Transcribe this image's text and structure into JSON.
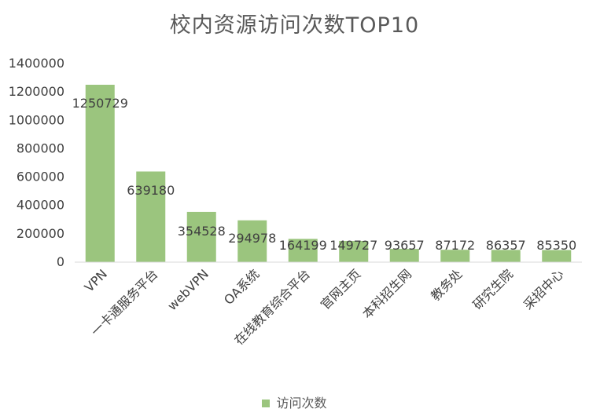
{
  "chart_data": {
    "type": "bar",
    "title": "校内资源访问次数TOP10",
    "categories": [
      "VPN",
      "一卡通服务平台",
      "webVPN",
      "OA系统",
      "在线教育综合平台",
      "官网主页",
      "本科招生网",
      "教务处",
      "研究生院",
      "采招中心"
    ],
    "series": [
      {
        "name": "访问次数",
        "values": [
          1250729,
          639180,
          354528,
          294978,
          164199,
          149727,
          93657,
          87172,
          86357,
          85350
        ]
      }
    ],
    "data_labels": [
      "1250729",
      "639180",
      "354528",
      "294978",
      "164199",
      "149727",
      "93657",
      "87172",
      "86357",
      "85350"
    ],
    "y_ticks": [
      "0",
      "200000",
      "400000",
      "600000",
      "800000",
      "1000000",
      "1200000",
      "1400000"
    ],
    "ylim": [
      0,
      1400000
    ],
    "xlabel": "",
    "ylabel": "",
    "grid": false,
    "legend_position": "bottom",
    "colors": {
      "bar": "#9bc57e",
      "axis": "#d9d9d9",
      "text": "#404040",
      "title": "#595959"
    }
  }
}
